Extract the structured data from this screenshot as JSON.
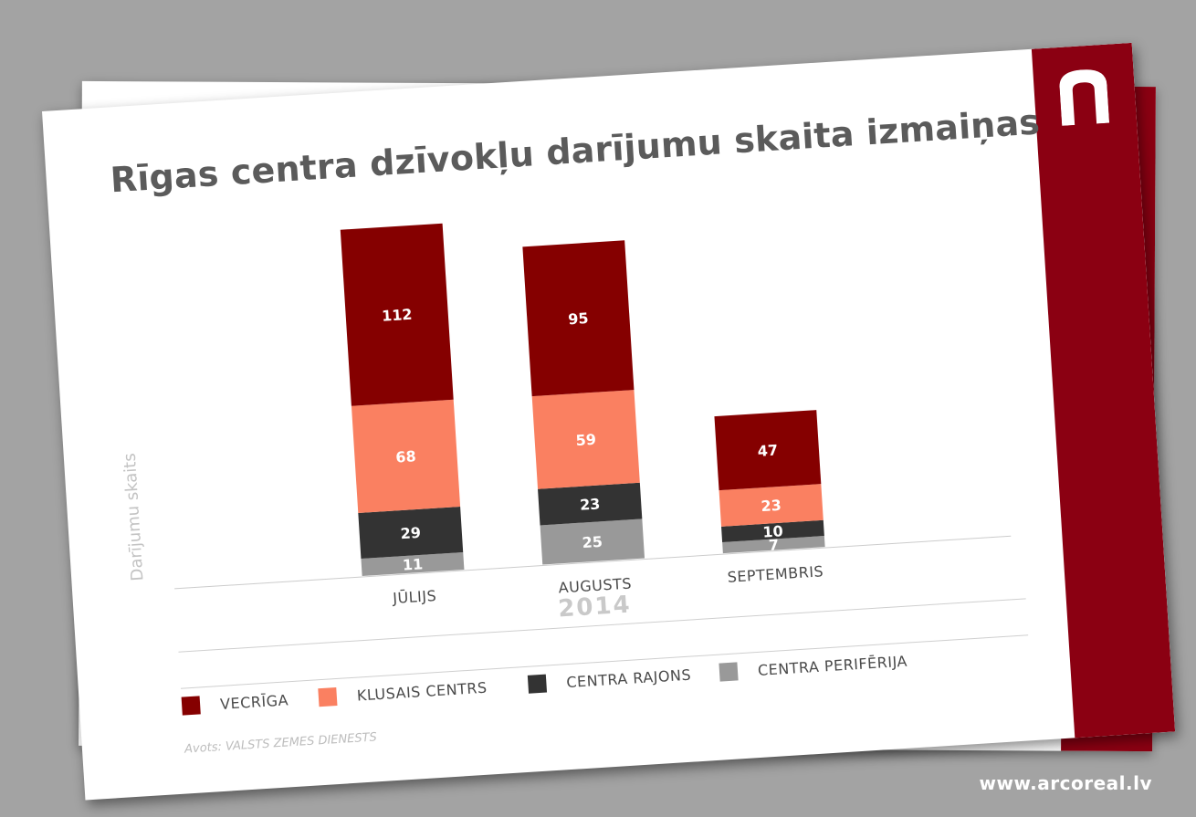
{
  "brand": {
    "url": "www.arcoreal.lv",
    "accent_color": "#8b0012",
    "logo_icon": "arc-logo-icon"
  },
  "chart_data": {
    "type": "bar",
    "stacked": true,
    "title": "Rīgas centra dzīvokļu darījumu skaita izmaiņas",
    "ylabel": "Darījumu skaits",
    "xlabel": "2014",
    "categories": [
      "JŪLIJS",
      "AUGUSTS",
      "SEPTEMBRIS"
    ],
    "series": [
      {
        "name": "CENTRA PERIFĒRIJA",
        "color": "#999999",
        "values": [
          11,
          25,
          7
        ]
      },
      {
        "name": "CENTRA RAJONS",
        "color": "#333333",
        "values": [
          29,
          23,
          10
        ]
      },
      {
        "name": "KLUSAIS CENTRS",
        "color": "#fa8061",
        "values": [
          68,
          59,
          23
        ]
      },
      {
        "name": "VECRĪGA",
        "color": "#850000",
        "values": [
          112,
          95,
          47
        ]
      }
    ],
    "legend_order": [
      "VECRĪGA",
      "KLUSAIS CENTRS",
      "CENTRA RAJONS",
      "CENTRA PERIFĒRIJA"
    ],
    "legend_position": "bottom",
    "grid": false,
    "source": "Avots: VALSTS ZEMES DIENESTS"
  }
}
